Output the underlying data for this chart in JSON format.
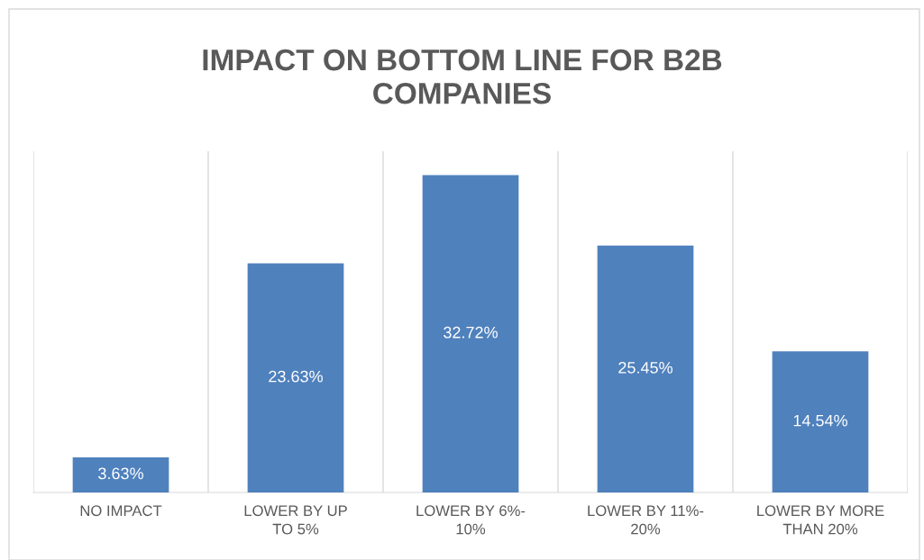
{
  "chart_data": {
    "type": "bar",
    "title": "IMPACT ON BOTTOM LINE FOR B2B\nCOMPANIES",
    "categories": [
      "NO IMPACT",
      "LOWER BY UP\nTO 5%",
      "LOWER BY 6%-\n10%",
      "LOWER BY 11%-\n20%",
      "LOWER BY MORE\nTHAN 20%"
    ],
    "values": [
      3.63,
      23.63,
      32.72,
      25.45,
      14.54
    ],
    "value_labels": [
      "3.63%",
      "23.63%",
      "32.72%",
      "25.45%",
      "14.54%"
    ],
    "color": "#4f81bd",
    "grid": "x"
  }
}
